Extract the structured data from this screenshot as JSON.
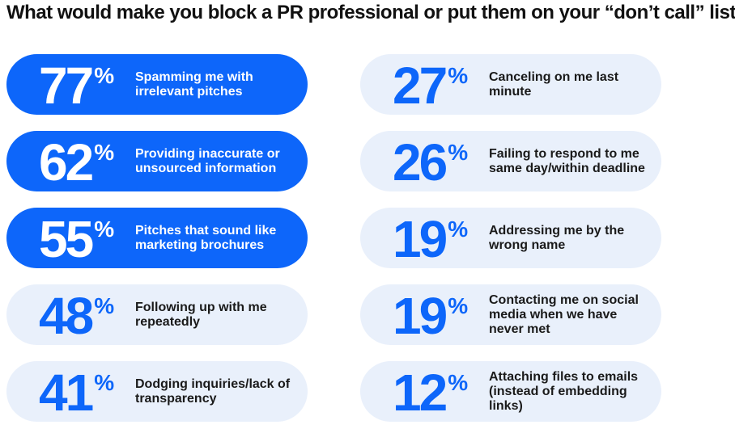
{
  "title": "What would make you block a PR professional or put them on your “don’t call” list?",
  "chart_data": {
    "type": "table",
    "title": "What would make you block a PR professional or put them on your “don’t call” list?",
    "unit": "%",
    "colors": {
      "highlight": "#0d66fa",
      "muted": "#e9f0fb"
    },
    "items": [
      {
        "value": 77,
        "value_label": "77",
        "label": "Spamming me with irrelevant pitches",
        "highlight": true
      },
      {
        "value": 62,
        "value_label": "62",
        "label": "Providing inaccurate or unsourced information",
        "highlight": true
      },
      {
        "value": 55,
        "value_label": "55",
        "label": "Pitches that sound like marketing brochures",
        "highlight": true
      },
      {
        "value": 48,
        "value_label": "48",
        "label": "Following up with me repeatedly",
        "highlight": false
      },
      {
        "value": 41,
        "value_label": "41",
        "label": "Dodging inquiries/lack of transparency",
        "highlight": false
      },
      {
        "value": 27,
        "value_label": "27",
        "label": "Canceling on me last minute",
        "highlight": false
      },
      {
        "value": 26,
        "value_label": "26",
        "label": "Failing to respond to me same day/within deadline",
        "highlight": false
      },
      {
        "value": 19,
        "value_label": "19",
        "label": "Addressing me by the wrong name",
        "highlight": false
      },
      {
        "value": 19,
        "value_label": "19",
        "label": "Contacting me on social media when we have never met",
        "highlight": false
      },
      {
        "value": 12,
        "value_label": "12",
        "label": "Attaching files to emails (instead of embedding links)",
        "highlight": false
      }
    ]
  }
}
